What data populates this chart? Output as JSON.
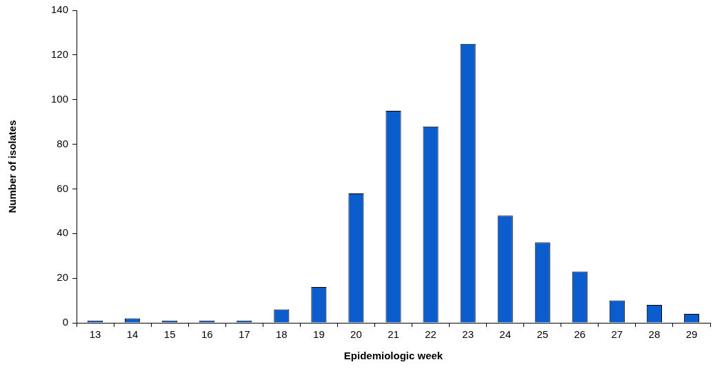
{
  "chart_data": {
    "type": "bar",
    "xlabel": "Epidemiologic week",
    "ylabel": "Number of isolates",
    "categories": [
      "13",
      "14",
      "15",
      "16",
      "17",
      "18",
      "19",
      "20",
      "21",
      "22",
      "23",
      "24",
      "25",
      "26",
      "27",
      "28",
      "29"
    ],
    "values": [
      1,
      2,
      1,
      1,
      1,
      6,
      16,
      58,
      95,
      88,
      125,
      48,
      36,
      23,
      10,
      8,
      4
    ],
    "color": "#0b5ccc",
    "ylim": [
      0,
      140
    ],
    "yticks": [
      0,
      20,
      40,
      60,
      80,
      100,
      120,
      140
    ],
    "grid": false,
    "legend": false
  }
}
